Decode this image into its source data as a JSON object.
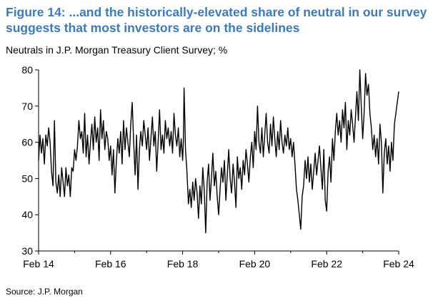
{
  "chart_data": {
    "type": "line",
    "title": "Figure 14: ...and the historically-elevated share of neutral in our survey suggests that most investors are on the sidelines",
    "subtitle": "Neutrals in J.P. Morgan Treasury Client Survey; %",
    "source": "Source: J.P. Morgan",
    "xlabel": "",
    "ylabel": "",
    "ylim": [
      30,
      80
    ],
    "yticks": [
      30,
      40,
      50,
      60,
      70,
      80
    ],
    "xlim": [
      2014.0,
      2024.0
    ],
    "xticks": [
      {
        "x": 2014.0,
        "label": "Feb 14"
      },
      {
        "x": 2016.0,
        "label": "Feb 16"
      },
      {
        "x": 2018.0,
        "label": "Feb 18"
      },
      {
        "x": 2020.0,
        "label": "Feb 20"
      },
      {
        "x": 2022.0,
        "label": "Feb 22"
      },
      {
        "x": 2024.0,
        "label": "Feb 24"
      }
    ],
    "grid": false,
    "series": [
      {
        "name": "",
        "color": "#000000",
        "points": [
          [
            2014.0,
            55
          ],
          [
            2014.04,
            62
          ],
          [
            2014.08,
            57
          ],
          [
            2014.12,
            61
          ],
          [
            2014.16,
            54
          ],
          [
            2014.2,
            62
          ],
          [
            2014.24,
            59
          ],
          [
            2014.28,
            64
          ],
          [
            2014.32,
            60
          ],
          [
            2014.36,
            52
          ],
          [
            2014.4,
            48
          ],
          [
            2014.44,
            66
          ],
          [
            2014.48,
            49
          ],
          [
            2014.52,
            46
          ],
          [
            2014.56,
            51
          ],
          [
            2014.6,
            45
          ],
          [
            2014.64,
            53
          ],
          [
            2014.68,
            49
          ],
          [
            2014.72,
            45
          ],
          [
            2014.76,
            53
          ],
          [
            2014.8,
            48
          ],
          [
            2014.84,
            51
          ],
          [
            2014.88,
            45
          ],
          [
            2014.92,
            53
          ],
          [
            2014.96,
            52
          ],
          [
            2015.0,
            58
          ],
          [
            2015.04,
            55
          ],
          [
            2015.08,
            59
          ],
          [
            2015.12,
            66
          ],
          [
            2015.16,
            61
          ],
          [
            2015.2,
            63
          ],
          [
            2015.24,
            57
          ],
          [
            2015.28,
            68
          ],
          [
            2015.32,
            56
          ],
          [
            2015.36,
            62
          ],
          [
            2015.4,
            54
          ],
          [
            2015.44,
            60
          ],
          [
            2015.48,
            65
          ],
          [
            2015.52,
            58
          ],
          [
            2015.56,
            67
          ],
          [
            2015.6,
            60
          ],
          [
            2015.64,
            64
          ],
          [
            2015.68,
            55
          ],
          [
            2015.72,
            69
          ],
          [
            2015.76,
            61
          ],
          [
            2015.8,
            66
          ],
          [
            2015.84,
            58
          ],
          [
            2015.88,
            63
          ],
          [
            2015.92,
            61
          ],
          [
            2015.96,
            55
          ],
          [
            2016.0,
            59
          ],
          [
            2016.04,
            51
          ],
          [
            2016.08,
            58
          ],
          [
            2016.12,
            46
          ],
          [
            2016.16,
            55
          ],
          [
            2016.2,
            61
          ],
          [
            2016.24,
            57
          ],
          [
            2016.28,
            63
          ],
          [
            2016.32,
            54
          ],
          [
            2016.36,
            66
          ],
          [
            2016.4,
            58
          ],
          [
            2016.44,
            64
          ],
          [
            2016.48,
            60
          ],
          [
            2016.52,
            56
          ],
          [
            2016.56,
            65
          ],
          [
            2016.6,
            71
          ],
          [
            2016.64,
            60
          ],
          [
            2016.68,
            51
          ],
          [
            2016.72,
            62
          ],
          [
            2016.76,
            47
          ],
          [
            2016.8,
            58
          ],
          [
            2016.84,
            63
          ],
          [
            2016.88,
            59
          ],
          [
            2016.92,
            66
          ],
          [
            2016.96,
            62
          ],
          [
            2017.0,
            58
          ],
          [
            2017.04,
            64
          ],
          [
            2017.08,
            55
          ],
          [
            2017.12,
            61
          ],
          [
            2017.16,
            67
          ],
          [
            2017.2,
            59
          ],
          [
            2017.24,
            63
          ],
          [
            2017.28,
            52
          ],
          [
            2017.32,
            60
          ],
          [
            2017.36,
            69
          ],
          [
            2017.4,
            58
          ],
          [
            2017.44,
            62
          ],
          [
            2017.48,
            57
          ],
          [
            2017.52,
            66
          ],
          [
            2017.56,
            61
          ],
          [
            2017.6,
            64
          ],
          [
            2017.64,
            59
          ],
          [
            2017.68,
            63
          ],
          [
            2017.72,
            57
          ],
          [
            2017.76,
            68
          ],
          [
            2017.8,
            62
          ],
          [
            2017.84,
            59
          ],
          [
            2017.88,
            64
          ],
          [
            2017.92,
            56
          ],
          [
            2017.96,
            61
          ],
          [
            2018.0,
            55
          ],
          [
            2018.02,
            60
          ],
          [
            2018.04,
            75
          ],
          [
            2018.06,
            67
          ],
          [
            2018.08,
            58
          ],
          [
            2018.12,
            52
          ],
          [
            2018.16,
            43
          ],
          [
            2018.2,
            47
          ],
          [
            2018.24,
            42
          ],
          [
            2018.28,
            49
          ],
          [
            2018.32,
            44
          ],
          [
            2018.36,
            50
          ],
          [
            2018.4,
            46
          ],
          [
            2018.44,
            39
          ],
          [
            2018.48,
            48
          ],
          [
            2018.52,
            43
          ],
          [
            2018.56,
            53
          ],
          [
            2018.6,
            47
          ],
          [
            2018.64,
            35
          ],
          [
            2018.68,
            49
          ],
          [
            2018.72,
            54
          ],
          [
            2018.76,
            44
          ],
          [
            2018.8,
            50
          ],
          [
            2018.84,
            57
          ],
          [
            2018.88,
            48
          ],
          [
            2018.92,
            52
          ],
          [
            2018.96,
            45
          ],
          [
            2019.0,
            40
          ],
          [
            2019.04,
            47
          ],
          [
            2019.08,
            53
          ],
          [
            2019.12,
            49
          ],
          [
            2019.16,
            55
          ],
          [
            2019.2,
            44
          ],
          [
            2019.24,
            51
          ],
          [
            2019.28,
            58
          ],
          [
            2019.32,
            50
          ],
          [
            2019.36,
            46
          ],
          [
            2019.4,
            54
          ],
          [
            2019.44,
            49
          ],
          [
            2019.48,
            42
          ],
          [
            2019.52,
            56
          ],
          [
            2019.56,
            50
          ],
          [
            2019.6,
            53
          ],
          [
            2019.64,
            47
          ],
          [
            2019.68,
            55
          ],
          [
            2019.72,
            51
          ],
          [
            2019.76,
            58
          ],
          [
            2019.8,
            54
          ],
          [
            2019.84,
            49
          ],
          [
            2019.88,
            56
          ],
          [
            2019.92,
            60
          ],
          [
            2019.96,
            53
          ],
          [
            2020.0,
            63
          ],
          [
            2020.04,
            58
          ],
          [
            2020.08,
            70
          ],
          [
            2020.12,
            60
          ],
          [
            2020.16,
            57
          ],
          [
            2020.2,
            64
          ],
          [
            2020.24,
            56
          ],
          [
            2020.28,
            62
          ],
          [
            2020.32,
            68
          ],
          [
            2020.36,
            60
          ],
          [
            2020.4,
            57
          ],
          [
            2020.44,
            65
          ],
          [
            2020.48,
            59
          ],
          [
            2020.52,
            67
          ],
          [
            2020.56,
            61
          ],
          [
            2020.6,
            56
          ],
          [
            2020.64,
            63
          ],
          [
            2020.68,
            58
          ],
          [
            2020.72,
            66
          ],
          [
            2020.76,
            60
          ],
          [
            2020.8,
            57
          ],
          [
            2020.84,
            62
          ],
          [
            2020.88,
            59
          ],
          [
            2020.92,
            64
          ],
          [
            2020.96,
            58
          ],
          [
            2021.0,
            61
          ],
          [
            2021.04,
            56
          ],
          [
            2021.08,
            60
          ],
          [
            2021.12,
            54
          ],
          [
            2021.16,
            47
          ],
          [
            2021.2,
            44
          ],
          [
            2021.24,
            40
          ],
          [
            2021.28,
            36
          ],
          [
            2021.32,
            45
          ],
          [
            2021.36,
            48
          ],
          [
            2021.4,
            55
          ],
          [
            2021.44,
            50
          ],
          [
            2021.48,
            56
          ],
          [
            2021.52,
            49
          ],
          [
            2021.56,
            54
          ],
          [
            2021.6,
            47
          ],
          [
            2021.64,
            52
          ],
          [
            2021.68,
            57
          ],
          [
            2021.72,
            51
          ],
          [
            2021.76,
            55
          ],
          [
            2021.8,
            59
          ],
          [
            2021.84,
            53
          ],
          [
            2021.88,
            47
          ],
          [
            2021.92,
            58
          ],
          [
            2021.96,
            44
          ],
          [
            2022.0,
            41
          ],
          [
            2022.04,
            52
          ],
          [
            2022.08,
            56
          ],
          [
            2022.12,
            49
          ],
          [
            2022.16,
            61
          ],
          [
            2022.2,
            55
          ],
          [
            2022.24,
            63
          ],
          [
            2022.28,
            68
          ],
          [
            2022.32,
            62
          ],
          [
            2022.36,
            66
          ],
          [
            2022.4,
            60
          ],
          [
            2022.44,
            69
          ],
          [
            2022.48,
            64
          ],
          [
            2022.52,
            71
          ],
          [
            2022.56,
            58
          ],
          [
            2022.6,
            66
          ],
          [
            2022.64,
            62
          ],
          [
            2022.68,
            69
          ],
          [
            2022.72,
            65
          ],
          [
            2022.76,
            60
          ],
          [
            2022.8,
            67
          ],
          [
            2022.84,
            74
          ],
          [
            2022.88,
            66
          ],
          [
            2022.92,
            80
          ],
          [
            2022.96,
            70
          ],
          [
            2023.0,
            61
          ],
          [
            2023.04,
            68
          ],
          [
            2023.08,
            79
          ],
          [
            2023.12,
            73
          ],
          [
            2023.16,
            76
          ],
          [
            2023.2,
            68
          ],
          [
            2023.24,
            64
          ],
          [
            2023.28,
            58
          ],
          [
            2023.32,
            62
          ],
          [
            2023.36,
            56
          ],
          [
            2023.4,
            61
          ],
          [
            2023.44,
            54
          ],
          [
            2023.48,
            65
          ],
          [
            2023.52,
            60
          ],
          [
            2023.56,
            46
          ],
          [
            2023.6,
            57
          ],
          [
            2023.64,
            61
          ],
          [
            2023.68,
            54
          ],
          [
            2023.72,
            59
          ],
          [
            2023.76,
            52
          ],
          [
            2023.8,
            60
          ],
          [
            2023.84,
            55
          ],
          [
            2023.88,
            65
          ],
          [
            2023.92,
            68
          ],
          [
            2023.96,
            71
          ],
          [
            2024.0,
            74
          ]
        ]
      }
    ]
  }
}
